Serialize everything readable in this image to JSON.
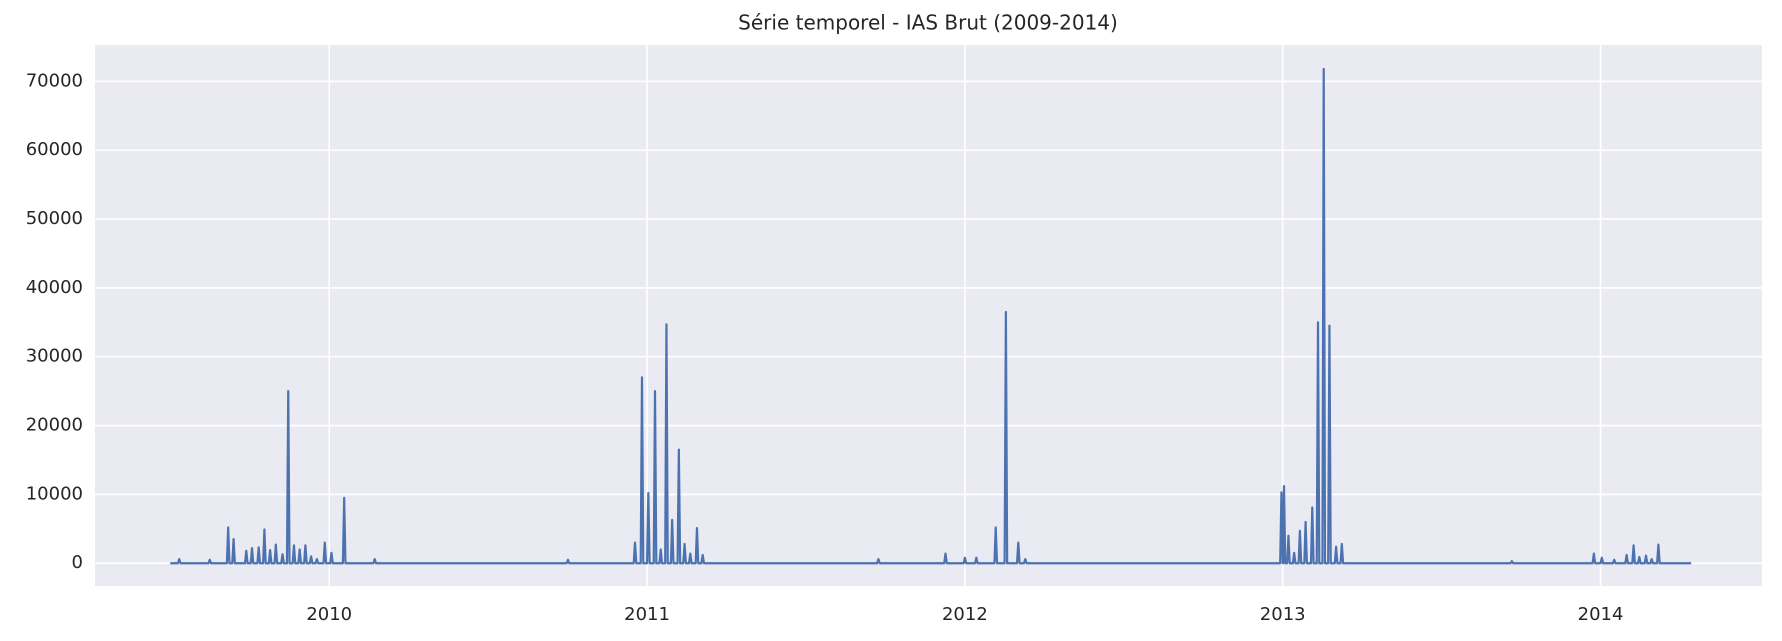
{
  "chart_data": {
    "type": "line",
    "title": "Série temporel - IAS Brut (2009-2014)",
    "xlim": [
      2009.263,
      2014.508
    ],
    "xticks": [
      2010,
      2011,
      2012,
      2013,
      2014
    ],
    "ylim": [
      -3310,
      75290
    ],
    "yticks": [
      0,
      10000,
      20000,
      30000,
      40000,
      50000,
      60000,
      70000
    ],
    "grid": true,
    "x": [
      2009.5,
      2009.524,
      2009.528,
      2009.532,
      2009.62,
      2009.624,
      2009.628,
      2009.678,
      2009.682,
      2009.686,
      2009.695,
      2009.699,
      2009.703,
      2009.735,
      2009.739,
      2009.743,
      2009.753,
      2009.757,
      2009.761,
      2009.774,
      2009.778,
      2009.782,
      2009.792,
      2009.796,
      2009.8,
      2009.81,
      2009.814,
      2009.818,
      2009.828,
      2009.832,
      2009.836,
      2009.849,
      2009.853,
      2009.857,
      2009.867,
      2009.871,
      2009.875,
      2009.885,
      2009.889,
      2009.893,
      2009.903,
      2009.907,
      2009.911,
      2009.921,
      2009.925,
      2009.929,
      2009.939,
      2009.943,
      2009.947,
      2009.957,
      2009.961,
      2009.965,
      2009.982,
      2009.986,
      2009.99,
      2010.003,
      2010.007,
      2010.011,
      2010.043,
      2010.047,
      2010.051,
      2010.139,
      2010.143,
      2010.147,
      2010.747,
      2010.751,
      2010.755,
      2010.958,
      2010.962,
      2010.966,
      2010.98,
      2010.984,
      2010.988,
      2011.0,
      2011.004,
      2011.008,
      2011.021,
      2011.025,
      2011.029,
      2011.039,
      2011.043,
      2011.047,
      2011.057,
      2011.061,
      2011.065,
      2011.075,
      2011.079,
      2011.083,
      2011.096,
      2011.1,
      2011.104,
      2011.114,
      2011.118,
      2011.122,
      2011.132,
      2011.136,
      2011.14,
      2011.153,
      2011.157,
      2011.161,
      2011.171,
      2011.175,
      2011.179,
      2011.724,
      2011.728,
      2011.732,
      2011.935,
      2011.939,
      2011.943,
      2011.996,
      2012.0,
      2012.004,
      2012.032,
      2012.036,
      2012.04,
      2012.093,
      2012.097,
      2012.101,
      2012.125,
      2012.129,
      2012.133,
      2012.164,
      2012.168,
      2012.172,
      2012.186,
      2012.19,
      2012.194,
      2012.992,
      2012.996,
      2013.0,
      2013.001,
      2013.004,
      2013.008,
      2013.014,
      2013.018,
      2013.022,
      2013.032,
      2013.036,
      2013.04,
      2013.05,
      2013.054,
      2013.058,
      2013.068,
      2013.072,
      2013.076,
      2013.089,
      2013.093,
      2013.097,
      2013.107,
      2013.111,
      2013.115,
      2013.125,
      2013.129,
      2013.133,
      2013.143,
      2013.147,
      2013.151,
      2013.164,
      2013.168,
      2013.172,
      2013.182,
      2013.186,
      2013.19,
      2013.717,
      2013.721,
      2013.725,
      2013.975,
      2013.979,
      2013.983,
      2014.0,
      2014.004,
      2014.008,
      2014.039,
      2014.043,
      2014.047,
      2014.078,
      2014.082,
      2014.086,
      2014.1,
      2014.104,
      2014.108,
      2014.118,
      2014.122,
      2014.126,
      2014.139,
      2014.143,
      2014.147,
      2014.157,
      2014.161,
      2014.165,
      2014.178,
      2014.182,
      2014.186,
      2014.285
    ],
    "series": [
      {
        "color": "#4c72b0",
        "values": [
          0,
          0,
          600,
          0,
          0,
          500,
          0,
          0,
          5200,
          0,
          0,
          3500,
          0,
          0,
          1800,
          0,
          0,
          2200,
          0,
          0,
          2300,
          0,
          0,
          4900,
          0,
          0,
          1900,
          0,
          0,
          2700,
          0,
          0,
          1300,
          0,
          0,
          25000,
          0,
          0,
          2600,
          0,
          0,
          2000,
          0,
          0,
          2600,
          0,
          0,
          1000,
          0,
          0,
          600,
          0,
          0,
          3000,
          0,
          0,
          1500,
          0,
          0,
          9500,
          0,
          0,
          600,
          0,
          0,
          500,
          0,
          0,
          3000,
          0,
          0,
          27000,
          0,
          0,
          10200,
          0,
          0,
          25000,
          0,
          0,
          2000,
          0,
          0,
          34700,
          0,
          0,
          6300,
          0,
          0,
          16500,
          0,
          0,
          2800,
          0,
          0,
          1400,
          0,
          0,
          5100,
          0,
          0,
          1200,
          0,
          0,
          600,
          0,
          0,
          1400,
          0,
          0,
          800,
          0,
          0,
          800,
          0,
          0,
          5200,
          0,
          0,
          36500,
          0,
          0,
          3000,
          0,
          0,
          600,
          0,
          0,
          10300,
          0,
          0,
          11200,
          0,
          0,
          4000,
          0,
          0,
          1500,
          0,
          0,
          4700,
          0,
          0,
          6000,
          0,
          0,
          8100,
          0,
          0,
          35000,
          0,
          0,
          71800,
          0,
          0,
          34500,
          0,
          0,
          2400,
          0,
          0,
          2800,
          0,
          0,
          300,
          0,
          0,
          1400,
          0,
          0,
          800,
          0,
          0,
          500,
          0,
          0,
          1200,
          0,
          0,
          2600,
          0,
          0,
          900,
          0,
          0,
          1100,
          0,
          0,
          600,
          0,
          0,
          2700,
          0,
          0
        ]
      }
    ]
  }
}
